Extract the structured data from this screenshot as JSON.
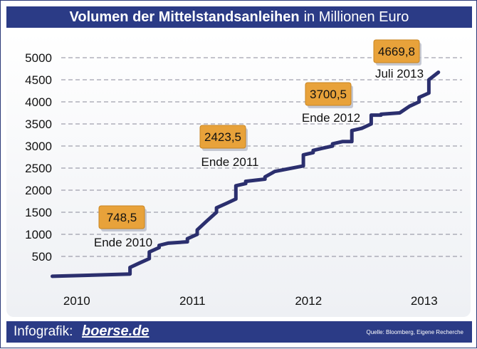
{
  "header": {
    "title_bold": "Volumen der Mittelstandsanleihen",
    "title_rest": "in Millionen Euro"
  },
  "footer": {
    "brand_label": "Infografik:",
    "brand_logo": "boerse.de",
    "source": "Quelle: Bloomberg, Eigene Recherche"
  },
  "colors": {
    "header_bg": "#2b3b86",
    "line": "#2b2f6e",
    "callout_fill": "#e8a23a",
    "gridline": "#8a8a9a"
  },
  "chart_data": {
    "type": "line",
    "title": "Volumen der Mittelstandsanleihen in Millionen Euro",
    "xlabel": "",
    "ylabel": "",
    "ylim": [
      0,
      5000
    ],
    "yticks": [
      "500",
      "1000",
      "1500",
      "2000",
      "2500",
      "3000",
      "3500",
      "4000",
      "4500",
      "5000"
    ],
    "xticks": [
      "2010",
      "2011",
      "2012",
      "2013"
    ],
    "grid": true,
    "series": [
      {
        "name": "",
        "x": [
          "2010-03",
          "2010-11",
          "2010-11",
          "2010-12",
          "2011-01",
          "2011-01",
          "2011-02",
          "2011-02",
          "2011-03",
          "2011-05",
          "2011-05",
          "2011-06",
          "2011-06",
          "2011-07",
          "2011-08",
          "2011-08",
          "2011-09",
          "2011-10",
          "2011-10",
          "2011-11",
          "2011-11",
          "2012-01",
          "2012-01",
          "2012-02",
          "2012-05",
          "2012-05",
          "2012-06",
          "2012-06",
          "2012-07",
          "2012-08",
          "2012-08",
          "2012-09",
          "2012-10",
          "2012-10",
          "2012-11",
          "2012-12",
          "2012-12",
          "2013-01",
          "2013-01",
          "2013-03",
          "2013-04",
          "2013-05",
          "2013-05",
          "2013-05",
          "2013-06",
          "2013-06",
          "2013-07"
        ],
        "values": [
          50,
          100,
          250,
          350,
          450,
          600,
          700,
          750,
          800,
          830,
          900,
          1000,
          1100,
          1300,
          1500,
          1600,
          1700,
          1800,
          2100,
          2150,
          2200,
          2250,
          2300,
          2423.5,
          2550,
          2800,
          2850,
          2900,
          2950,
          3000,
          3050,
          3100,
          3100,
          3350,
          3400,
          3500,
          3700.5,
          3700,
          3720,
          3750,
          3900,
          4000,
          4050,
          4100,
          4200,
          4500,
          4669.8
        ]
      }
    ],
    "annotations": [
      {
        "value": "748,5",
        "label": "Ende 2010"
      },
      {
        "value": "2423,5",
        "label": "Ende 2011"
      },
      {
        "value": "3700,5",
        "label": "Ende 2012"
      },
      {
        "value": "4669,8",
        "label": "Juli 2013"
      }
    ]
  }
}
